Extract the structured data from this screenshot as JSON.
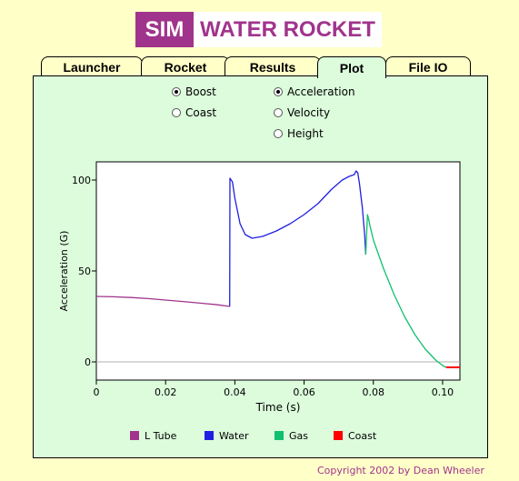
{
  "logo": {
    "sim": "SIM",
    "title": "WATER ROCKET"
  },
  "tabs": [
    "Launcher",
    "Rocket",
    "Results",
    "Plot",
    "File IO"
  ],
  "active_tab": "Plot",
  "phase_options": [
    {
      "label": "Boost",
      "selected": true
    },
    {
      "label": "Coast",
      "selected": false
    }
  ],
  "quantity_options": [
    {
      "label": "Acceleration",
      "selected": true
    },
    {
      "label": "Velocity",
      "selected": false
    },
    {
      "label": "Height",
      "selected": false
    }
  ],
  "chart_data": {
    "type": "line",
    "xlabel": "Time (s)",
    "ylabel": "Acceleration (G)",
    "xlim": [
      0,
      0.105
    ],
    "ylim": [
      -10,
      110
    ],
    "xticks": [
      "0",
      "0.02",
      "0.04",
      "0.06",
      "0.08",
      "0.10"
    ],
    "yticks": [
      "0",
      "50",
      "100"
    ],
    "series": [
      {
        "name": "L Tube",
        "color": "#a0348c",
        "x": [
          0,
          0.005,
          0.01,
          0.015,
          0.02,
          0.025,
          0.03,
          0.035,
          0.0385
        ],
        "y": [
          36,
          35.8,
          35.4,
          34.8,
          34,
          33.2,
          32.3,
          31.4,
          30.5
        ]
      },
      {
        "name": "Water",
        "color": "#2020e0",
        "x": [
          0.0385,
          0.0386,
          0.0393,
          0.04,
          0.0415,
          0.043,
          0.045,
          0.048,
          0.052,
          0.056,
          0.06,
          0.064,
          0.068,
          0.071,
          0.073,
          0.0745,
          0.075,
          0.0755,
          0.076,
          0.0768,
          0.0775,
          0.0778
        ],
        "y": [
          30.5,
          101,
          99,
          90,
          76,
          70,
          68,
          69,
          72,
          76,
          81,
          87,
          95,
          100,
          102,
          103,
          105,
          104,
          98,
          85,
          70,
          59
        ]
      },
      {
        "name": "Gas",
        "color": "#10c070",
        "x": [
          0.0778,
          0.0783,
          0.0787,
          0.079,
          0.08,
          0.083,
          0.086,
          0.089,
          0.092,
          0.095,
          0.098,
          0.1,
          0.101
        ],
        "y": [
          59,
          81,
          78,
          75,
          67,
          51,
          37,
          25,
          15,
          7,
          1,
          -2,
          -3
        ]
      },
      {
        "name": "Coast",
        "color": "#ff0000",
        "x": [
          0.101,
          0.105
        ],
        "y": [
          -3,
          -3
        ]
      }
    ]
  },
  "copyright": "Copyright 2002 by Dean Wheeler"
}
